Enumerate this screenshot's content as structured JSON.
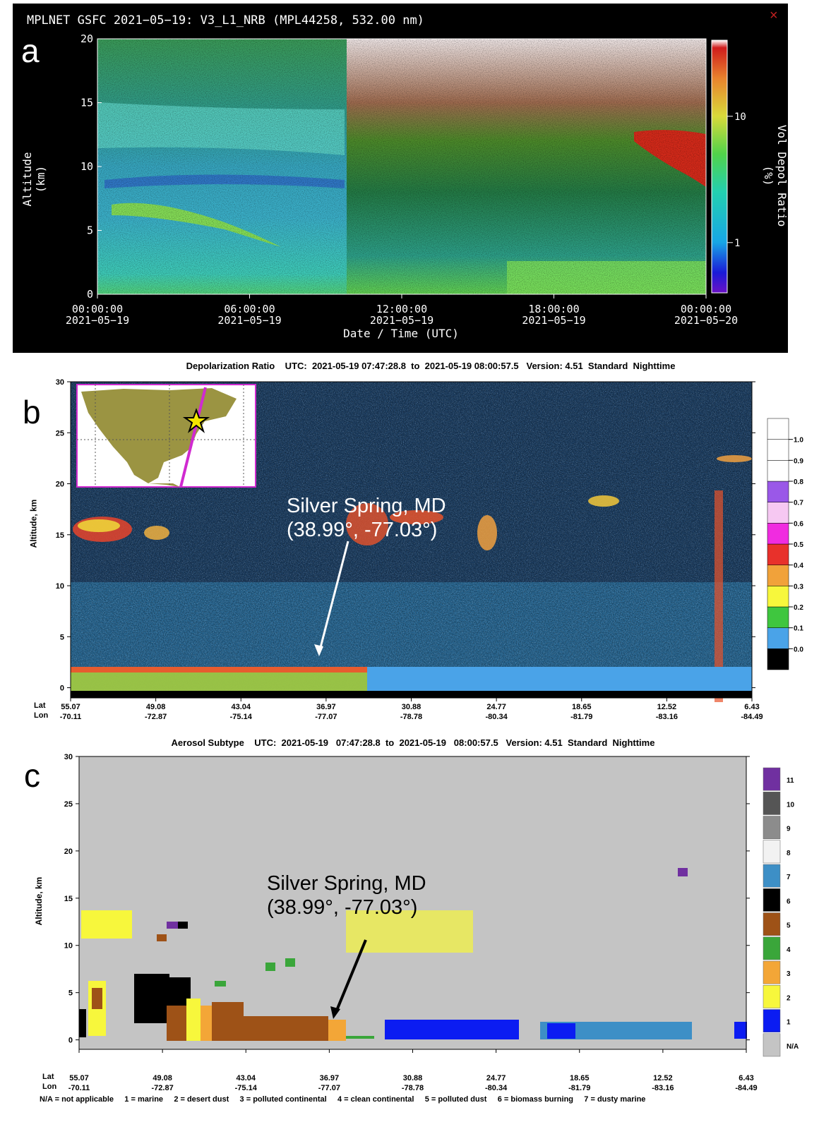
{
  "panels": {
    "a": {
      "label": "a",
      "title": "MPLNET GSFC 2021−05−19:  V3_L1_NRB  (MPL44258, 532.00 nm)",
      "close": "×",
      "ylabel": "Altitude (km)",
      "xlabel": "Date / Time (UTC)",
      "cbar_label": "Vol Depol Ratio (%)"
    },
    "b": {
      "label": "b",
      "title": "Depolarization Ratio    UTC:  2021-05-19 07:47:28.8  to  2021-05-19 08:00:57.5   Version: 4.51  Standard  Nighttime",
      "ylabel": "Altitude, km",
      "annotation_line1": "Silver Spring, MD",
      "annotation_line2": "(38.99°, -77.03°)",
      "lat_label": "Lat",
      "lon_label": "Lon"
    },
    "c": {
      "label": "c",
      "title": "Aerosol Subtype    UTC:  2021-05-19   07:47:28.8  to  2021-05-19   08:00:57.5   Version: 4.51  Standard  Nighttime",
      "ylabel": "Altitude, km",
      "annotation_line1": "Silver Spring, MD",
      "annotation_line2": "(38.99°, -77.03°)",
      "lat_label": "Lat",
      "lon_label": "Lon",
      "legend_text": "N/A = not applicable     1 = marine     2 = desert dust     3 = polluted continental     4 = clean continental     5 = polluted dust     6 = biomass burning     7 = dusty marine"
    }
  },
  "chart_data": [
    {
      "type": "heatmap",
      "title": "MPLNET GSFC 2021−05−19:  V3_L1_NRB  (MPL44258, 532.00 nm)",
      "xlabel": "Date / Time (UTC)",
      "ylabel": "Altitude (km)",
      "ylim": [
        0,
        20
      ],
      "yticks": [
        "0",
        "5",
        "10",
        "15",
        "20"
      ],
      "xticks": [
        {
          "time": "00:00:00",
          "date": "2021−05−19"
        },
        {
          "time": "06:00:00",
          "date": "2021−05−19"
        },
        {
          "time": "12:00:00",
          "date": "2021−05−19"
        },
        {
          "time": "18:00:00",
          "date": "2021−05−19"
        },
        {
          "time": "00:00:00",
          "date": "2021−05−20"
        }
      ],
      "colorbar": {
        "label": "Vol Depol Ratio (%)",
        "scale": "log",
        "ticks": [
          "1",
          "10"
        ]
      }
    },
    {
      "type": "heatmap",
      "title": "Depolarization Ratio    UTC:  2021-05-19 07:47:28.8  to  2021-05-19 08:00:57.5   Version: 4.51  Standard  Nighttime",
      "ylabel": "Altitude, km",
      "ylim": [
        -1,
        30
      ],
      "yticks": [
        "0",
        "5",
        "10",
        "15",
        "20",
        "25",
        "30"
      ],
      "xticks_lat": [
        "55.07",
        "49.08",
        "43.04",
        "36.97",
        "30.88",
        "24.77",
        "18.65",
        "12.52",
        "6.43"
      ],
      "xticks_lon": [
        "-70.11",
        "-72.87",
        "-75.14",
        "-77.07",
        "-78.78",
        "-80.34",
        "-81.79",
        "-83.16",
        "-84.49"
      ],
      "colorbar": {
        "ticks": [
          "0.0",
          "0.1",
          "0.2",
          "0.3",
          "0.4",
          "0.5",
          "0.6",
          "0.7",
          "0.8",
          "0.9",
          "1.0"
        ],
        "colors": [
          "#000000",
          "#4aa3e8",
          "#3fc63f",
          "#f7f73c",
          "#f1a23a",
          "#e8312b",
          "#f02ce0",
          "#f6c8f2",
          "#9a58e8",
          "#ffffff",
          "#ffffff",
          "#ffffff"
        ]
      }
    },
    {
      "type": "heatmap",
      "title": "Aerosol Subtype    UTC:  2021-05-19   07:47:28.8  to  2021-05-19   08:00:57.5   Version: 4.51  Standard  Nighttime",
      "ylabel": "Altitude, km",
      "ylim": [
        -1,
        30
      ],
      "yticks": [
        "0",
        "5",
        "10",
        "15",
        "20",
        "25",
        "30"
      ],
      "xticks_lat": [
        "55.07",
        "49.08",
        "43.04",
        "36.97",
        "30.88",
        "24.77",
        "18.65",
        "12.52",
        "6.43"
      ],
      "xticks_lon": [
        "-70.11",
        "-72.87",
        "-75.14",
        "-77.07",
        "-78.78",
        "-80.34",
        "-81.79",
        "-83.16",
        "-84.49"
      ],
      "colorbar": {
        "categories": [
          "N/A",
          "1",
          "2",
          "3",
          "4",
          "5",
          "6",
          "7",
          "8",
          "9",
          "10",
          "11"
        ],
        "colors": [
          "#c4c4c4",
          "#0b1cf2",
          "#f7f73c",
          "#f3a637",
          "#3aa63a",
          "#9e5217",
          "#000000",
          "#3d8fc6",
          "#f2f2f2",
          "#8c8c8c",
          "#555555",
          "#7030a0"
        ]
      }
    }
  ]
}
